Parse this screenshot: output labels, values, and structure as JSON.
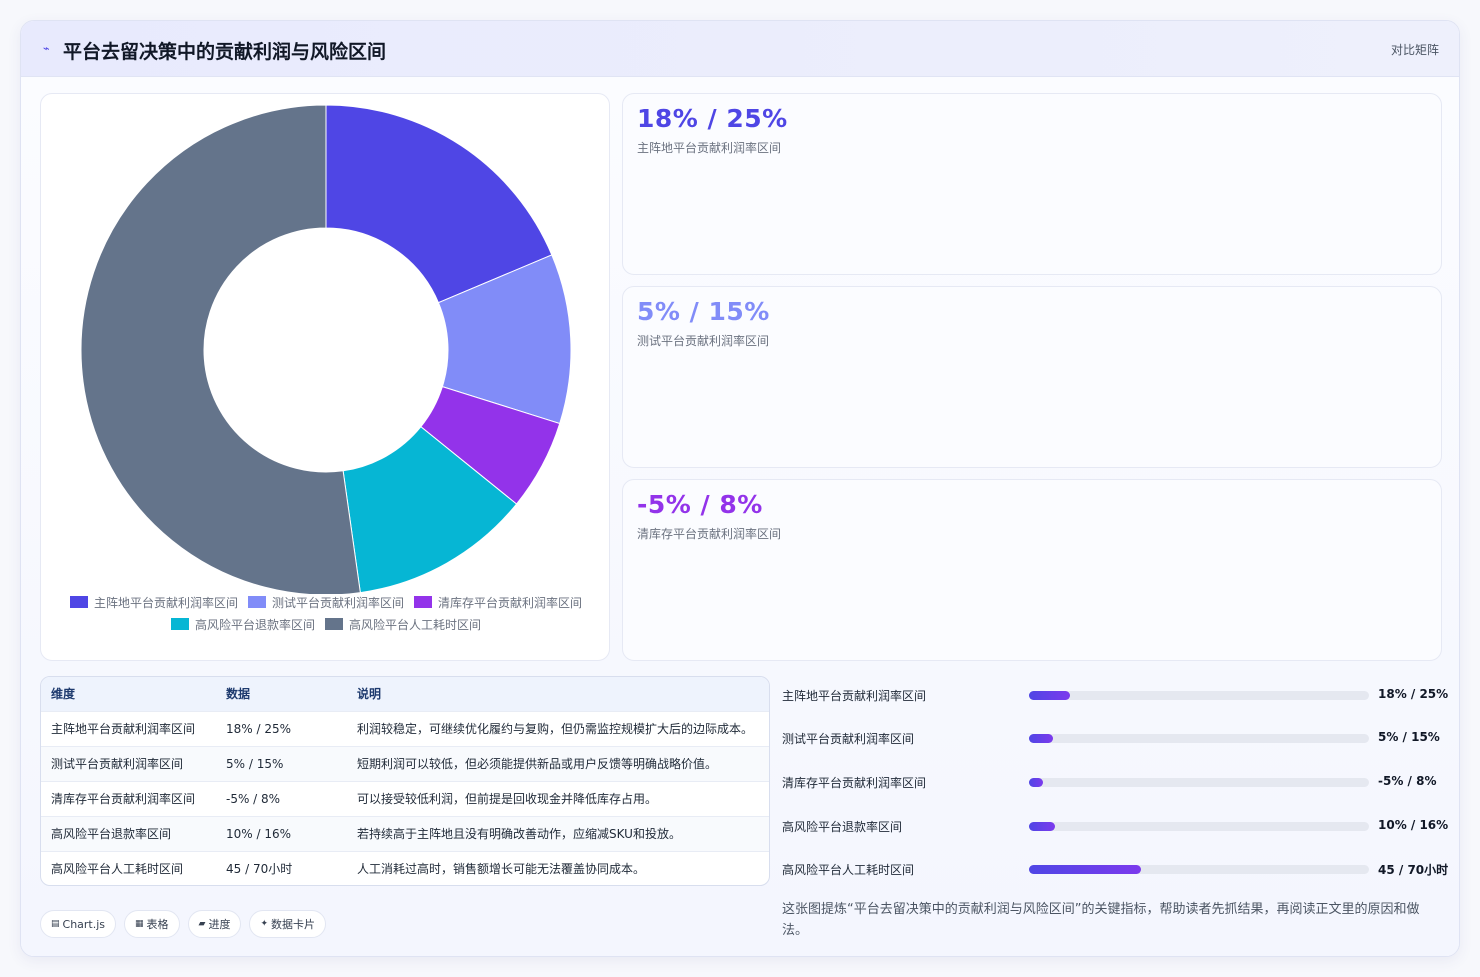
{
  "header": {
    "title": "平台去留决策中的贡献利润与风险区间",
    "right_label": "对比矩阵"
  },
  "chart_data": {
    "type": "pie",
    "variant": "doughnut",
    "labels": [
      "主阵地平台贡献利润率区间",
      "测试平台贡献利润率区间",
      "清库存平台贡献利润率区间",
      "高风险平台退款率区间",
      "高风险平台人工耗时区间"
    ],
    "values": [
      25,
      15,
      8,
      16,
      70
    ],
    "colors": [
      "#4f46e5",
      "#818cf8",
      "#9333ea",
      "#06b6d4",
      "#64748b"
    ],
    "legend_position": "bottom"
  },
  "stats": [
    {
      "value": "18% / 25%",
      "label": "主阵地平台贡献利润率区间",
      "color": "#4f46e5"
    },
    {
      "value": "5% / 15%",
      "label": "测试平台贡献利润率区间",
      "color": "#818cf8"
    },
    {
      "value": "-5% / 8%",
      "label": "清库存平台贡献利润率区间",
      "color": "#9333ea"
    }
  ],
  "table": {
    "headers": [
      "维度",
      "数据",
      "说明"
    ],
    "rows": [
      [
        "主阵地平台贡献利润率区间",
        "18% / 25%",
        "利润较稳定，可继续优化履约与复购，但仍需监控规模扩大后的边际成本。"
      ],
      [
        "测试平台贡献利润率区间",
        "5% / 15%",
        "短期利润可以较低，但必须能提供新品或用户反馈等明确战略价值。"
      ],
      [
        "清库存平台贡献利润率区间",
        "-5% / 8%",
        "可以接受较低利润，但前提是回收现金并降低库存占用。"
      ],
      [
        "高风险平台退款率区间",
        "10% / 16%",
        "若持续高于主阵地且没有明确改善动作，应缩减SKU和投放。"
      ],
      [
        "高风险平台人工耗时区间",
        "45 / 70小时",
        "人工消耗过高时，销售额增长可能无法覆盖协同成本。"
      ]
    ]
  },
  "progress": [
    {
      "label": "主阵地平台贡献利润率区间",
      "value": "18% / 25%",
      "fraction": 0.12
    },
    {
      "label": "测试平台贡献利润率区间",
      "value": "5% / 15%",
      "fraction": 0.07
    },
    {
      "label": "清库存平台贡献利润率区间",
      "value": "-5% / 8%",
      "fraction": 0.04
    },
    {
      "label": "高风险平台退款率区间",
      "value": "10% / 16%",
      "fraction": 0.075
    },
    {
      "label": "高风险平台人工耗时区间",
      "value": "45 / 70小时",
      "fraction": 0.33
    }
  ],
  "summary": "这张图提炼“平台去留决策中的贡献利润与风险区间”的关键指标，帮助读者先抓结果，再阅读正文里的原因和做法。",
  "chips": [
    {
      "icon": "▤",
      "label": "Chart.js"
    },
    {
      "icon": "▦",
      "label": "表格"
    },
    {
      "icon": "▰",
      "label": "进度"
    },
    {
      "icon": "✦",
      "label": "数据卡片"
    }
  ]
}
